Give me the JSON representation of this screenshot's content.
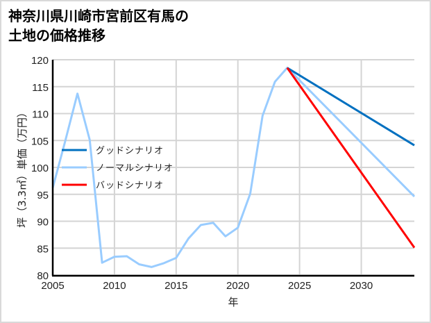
{
  "title": {
    "line1": "神奈川県川崎市宮前区有馬の",
    "line2": "土地の価格推移"
  },
  "chart_data": {
    "type": "line",
    "title": "神奈川県川崎市宮前区有馬の土地の価格推移",
    "xlabel": "年",
    "ylabel": "坪（3.3㎡）単価（万円）",
    "xlim": [
      2005,
      2034.3
    ],
    "ylim": [
      80,
      120
    ],
    "x_ticks": [
      2005,
      2010,
      2015,
      2020,
      2025,
      2030
    ],
    "y_ticks": [
      80,
      85,
      90,
      95,
      100,
      105,
      110,
      115,
      120
    ],
    "grid": true,
    "legend_position": "inside-left",
    "series": [
      {
        "name": "グッドシナリオ",
        "color": "#0070c0",
        "x": [
          2024,
          2034.3
        ],
        "values": [
          118.5,
          104.1
        ]
      },
      {
        "name": "ノーマルシナリオ",
        "color": "#99ccff",
        "x": [
          2005,
          2006,
          2007,
          2008,
          2009,
          2010,
          2011,
          2012,
          2013,
          2014,
          2015,
          2016,
          2017,
          2018,
          2019,
          2020,
          2021,
          2022,
          2023,
          2024,
          2034.3
        ],
        "values": [
          96.2,
          104.8,
          113.7,
          105.1,
          82.3,
          83.4,
          83.5,
          82.0,
          81.5,
          82.2,
          83.2,
          86.8,
          89.3,
          89.7,
          87.2,
          88.8,
          95.1,
          109.6,
          115.9,
          118.5,
          94.6
        ]
      },
      {
        "name": "バッドシナリオ",
        "color": "#ff0000",
        "x": [
          2024,
          2034.3
        ],
        "values": [
          118.5,
          85.1
        ]
      }
    ]
  },
  "legend": {
    "items": [
      {
        "label": "グッドシナリオ",
        "color": "#0070c0"
      },
      {
        "label": "ノーマルシナリオ",
        "color": "#99ccff"
      },
      {
        "label": "バッドシナリオ",
        "color": "#ff0000"
      }
    ]
  },
  "axes": {
    "x_title": "年",
    "y_title": "坪（3.3㎡）単価（万円）"
  }
}
